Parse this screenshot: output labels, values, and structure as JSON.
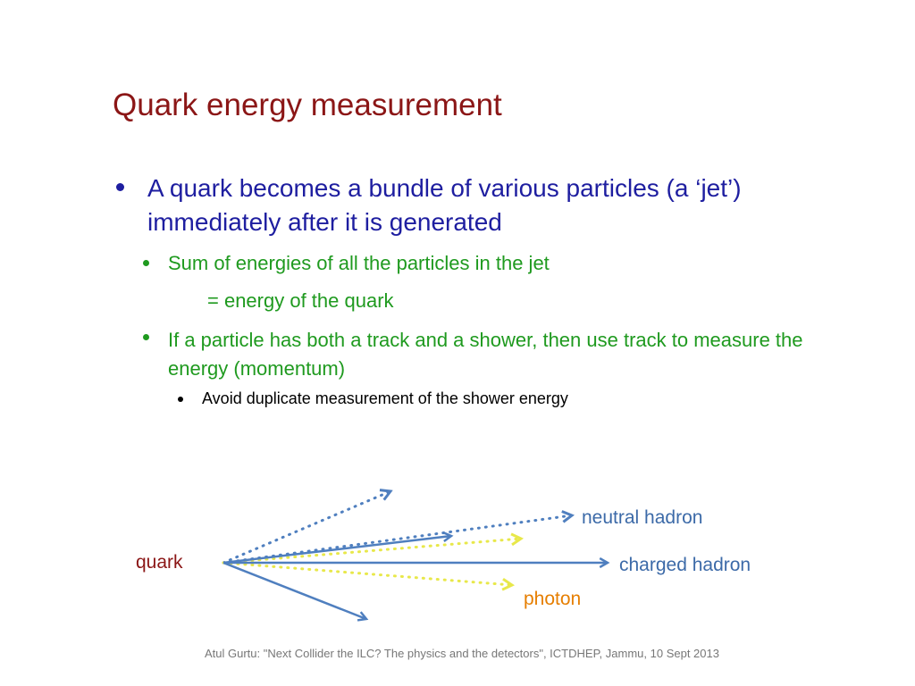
{
  "title": "Quark energy measurement",
  "body": [
    "A quark becomes a bundle of various particles (a ‘jet’) immediately after it is generated",
    "Sum of energies of all the particles in the jet",
    "= energy of the quark",
    "If a particle has both a track and a shower, then use track to measure the energy (momentum)",
    "Avoid duplicate measurement of the shower energy"
  ],
  "diagram": {
    "quark": "quark",
    "neutral": "neutral hadron",
    "charged": "charged hadron",
    "photon": "photon"
  },
  "footer": "Atul Gurtu: \"Next Collider the ILC? The physics and the detectors\", ICTDHEP, Jammu, 10 Sept 2013"
}
